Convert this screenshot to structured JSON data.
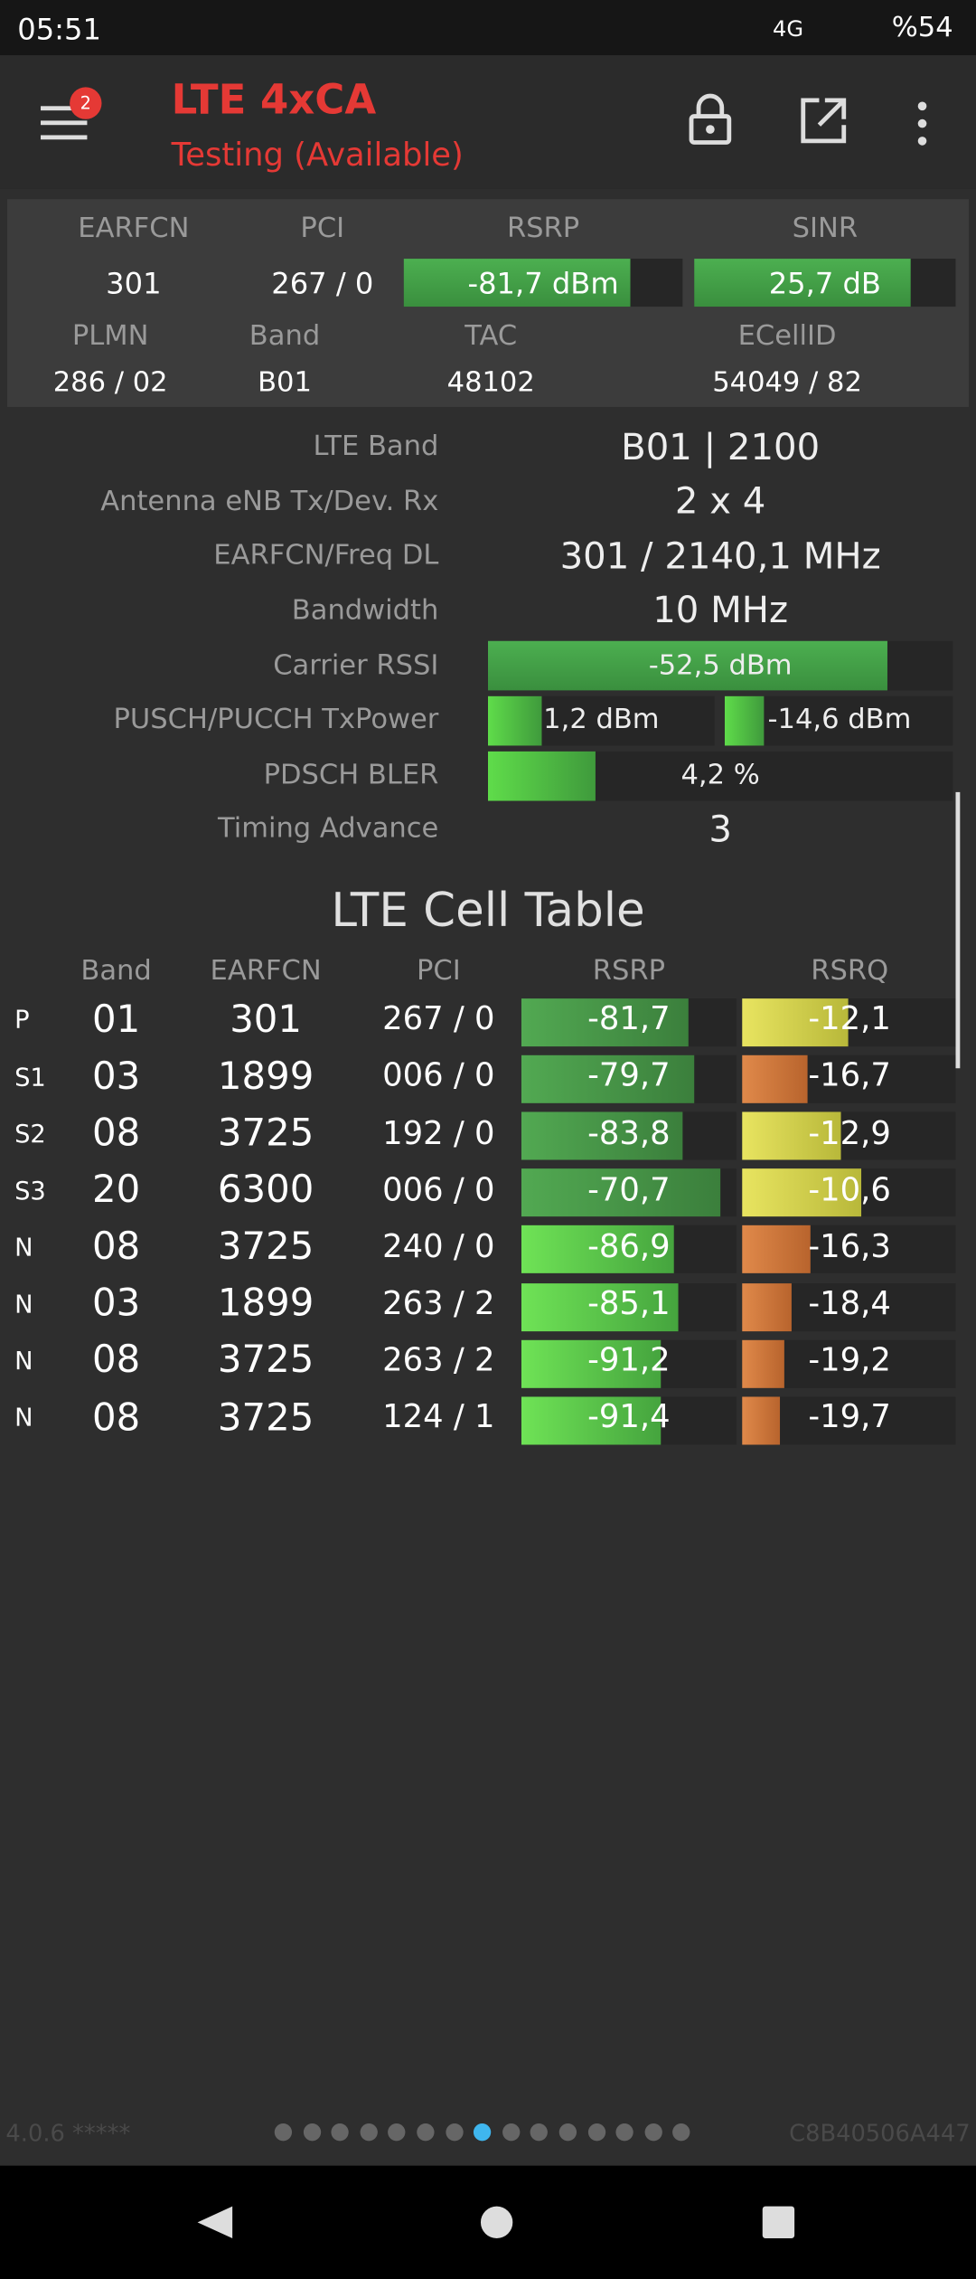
{
  "status_bar": {
    "time": "05:51",
    "network": "4G",
    "battery": "%54"
  },
  "toolbar": {
    "badge": "2",
    "title": "LTE 4xCA",
    "subtitle": "Testing (Available)"
  },
  "summary": {
    "headers": [
      "EARFCN",
      "PCI",
      "RSRP",
      "SINR"
    ],
    "values": [
      "301",
      "267 / 0",
      "-81,7 dBm",
      "25,7 dB"
    ],
    "headers2": [
      "PLMN",
      "Band",
      "TAC",
      "ECellID"
    ],
    "values2": [
      "286 / 02",
      "B01",
      "48102",
      "54049 / 82"
    ]
  },
  "details": [
    {
      "label": "LTE Band",
      "value": "B01 | 2100"
    },
    {
      "label": "Antenna eNB Tx/Dev. Rx",
      "value": "2 x 4"
    },
    {
      "label": "EARFCN/Freq DL",
      "value": "301 / 2140,1 MHz"
    },
    {
      "label": "Bandwidth",
      "value": "10 MHz"
    },
    {
      "label": "Carrier RSSI",
      "value": "-52,5 dBm"
    },
    {
      "label": "PUSCH/PUCCH TxPower",
      "value": "1,2 dBm",
      "value2": "-14,6 dBm"
    },
    {
      "label": "PDSCH BLER",
      "value": "4,2 %"
    },
    {
      "label": "Timing Advance",
      "value": "3"
    }
  ],
  "cell_table": {
    "title": "LTE Cell Table",
    "columns": [
      "Band",
      "EARFCN",
      "PCI",
      "RSRP",
      "RSRQ"
    ],
    "rows": [
      [
        "P",
        "01",
        "301",
        "267 / 0",
        "-81,7",
        "-12,1"
      ],
      [
        "S1",
        "03",
        "1899",
        "006 / 0",
        "-79,7",
        "-16,7"
      ],
      [
        "S2",
        "08",
        "3725",
        "192 / 0",
        "-83,8",
        "-12,9"
      ],
      [
        "S3",
        "20",
        "6300",
        "006 / 0",
        "-70,7",
        "-10,6"
      ],
      [
        "N",
        "08",
        "3725",
        "240 / 0",
        "-86,9",
        "-16,3"
      ],
      [
        "N",
        "03",
        "1899",
        "263 / 2",
        "-85,1",
        "-18,4"
      ],
      [
        "N",
        "08",
        "3725",
        "263 / 2",
        "-91,2",
        "-19,2"
      ],
      [
        "N",
        "08",
        "3725",
        "124 / 1",
        "-91,4",
        "-19,7"
      ]
    ]
  },
  "footer": {
    "version": "4.0.6 *****",
    "id": "C8B40506A447"
  }
}
